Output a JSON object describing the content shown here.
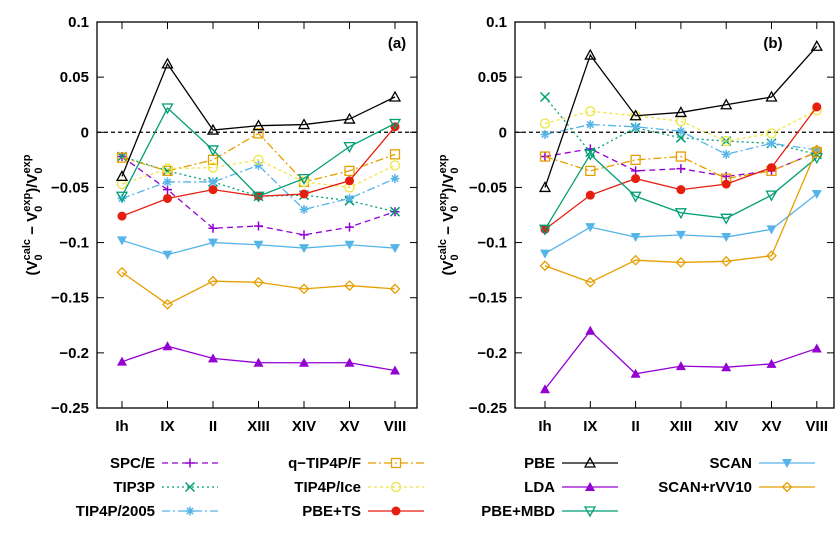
{
  "chart_data": [
    {
      "type": "line",
      "panel_label": "(a)",
      "categories": [
        "Ih",
        "IX",
        "II",
        "XIII",
        "XIV",
        "XV",
        "VIII"
      ],
      "ylim": [
        -0.25,
        0.1
      ],
      "yticks": [
        "0.1",
        "0.05",
        "0",
        "−0.05",
        "−0.1",
        "−0.15",
        "−0.2",
        "−0.25"
      ],
      "ylabel_parts": [
        "(V",
        "0",
        "calc",
        " − V",
        "0",
        "exp",
        ")/V",
        "0",
        "exp"
      ],
      "series": [
        {
          "name": "SPC/E",
          "color": "#9400d3",
          "dash": "6,4",
          "marker": "plus",
          "values": [
            -0.022,
            -0.052,
            -0.087,
            -0.085,
            -0.093,
            -0.086,
            -0.072
          ]
        },
        {
          "name": "TIP3P",
          "color": "#009e73",
          "dash": "2,3",
          "marker": "cross",
          "values": [
            -0.022,
            -0.035,
            -0.045,
            -0.058,
            -0.057,
            -0.062,
            -0.072
          ]
        },
        {
          "name": "TIP4P/2005",
          "color": "#56b4e9",
          "dash": "8,3,2,3",
          "marker": "star",
          "values": [
            -0.06,
            -0.045,
            -0.045,
            -0.03,
            -0.07,
            -0.06,
            -0.042
          ]
        },
        {
          "name": "q−TIP4P/F",
          "color": "#e69f00",
          "dash": "8,3,2,3",
          "marker": "square",
          "values": [
            -0.023,
            -0.035,
            -0.025,
            -0.001,
            -0.045,
            -0.035,
            -0.02
          ]
        },
        {
          "name": "TIP4P/Ice",
          "color": "#f0e442",
          "dash": "3,3",
          "marker": "circle",
          "values": [
            -0.047,
            -0.033,
            -0.032,
            -0.025,
            -0.045,
            -0.05,
            -0.03
          ]
        },
        {
          "name": "PBE+TS",
          "color": "#e51e10",
          "dash": "",
          "marker": "filledcircle",
          "values": [
            -0.076,
            -0.06,
            -0.052,
            -0.058,
            -0.056,
            -0.044,
            0.005
          ]
        },
        {
          "name": "PBE",
          "color": "#000000",
          "dash": "",
          "marker": "triangle",
          "values": [
            -0.04,
            0.062,
            0.002,
            0.006,
            0.007,
            0.012,
            0.032
          ]
        },
        {
          "name": "LDA",
          "color": "#9400d3",
          "dash": "",
          "marker": "filledtriangle",
          "values": [
            -0.208,
            -0.194,
            -0.205,
            -0.209,
            -0.209,
            -0.209,
            -0.216
          ]
        },
        {
          "name": "PBE+MBD",
          "color": "#009e73",
          "dash": "",
          "marker": "invtriangle",
          "values": [
            -0.058,
            0.022,
            -0.016,
            -0.058,
            -0.042,
            -0.013,
            0.008
          ]
        },
        {
          "name": "SCAN",
          "color": "#56b4e9",
          "dash": "",
          "marker": "filledinvtriangle",
          "values": [
            -0.098,
            -0.111,
            -0.1,
            -0.102,
            -0.105,
            -0.102,
            -0.105
          ]
        },
        {
          "name": "SCAN+rVV10",
          "color": "#e69f00",
          "dash": "",
          "marker": "diamond",
          "values": [
            -0.127,
            -0.156,
            -0.135,
            -0.136,
            -0.142,
            -0.139,
            -0.142
          ]
        }
      ]
    },
    {
      "type": "line",
      "panel_label": "(b)",
      "categories": [
        "Ih",
        "IX",
        "II",
        "XIII",
        "XIV",
        "XV",
        "VIII"
      ],
      "ylim": [
        -0.25,
        0.1
      ],
      "yticks": [
        "0.1",
        "0.05",
        "0",
        "−0.05",
        "−0.1",
        "−0.15",
        "−0.2",
        "−0.25"
      ],
      "ylabel_parts": [
        "(V",
        "0",
        "calc",
        " − V",
        "0",
        "exp",
        ")/V",
        "0",
        "exp"
      ],
      "series": [
        {
          "name": "SPC/E",
          "color": "#9400d3",
          "dash": "6,4",
          "marker": "plus",
          "values": [
            -0.022,
            -0.015,
            -0.035,
            -0.033,
            -0.04,
            -0.035,
            -0.018
          ]
        },
        {
          "name": "TIP3P",
          "color": "#009e73",
          "dash": "2,3",
          "marker": "cross",
          "values": [
            0.032,
            -0.018,
            0.004,
            -0.005,
            -0.008,
            -0.01,
            -0.02
          ]
        },
        {
          "name": "TIP4P/2005",
          "color": "#56b4e9",
          "dash": "8,3,2,3",
          "marker": "star",
          "values": [
            -0.002,
            0.007,
            0.005,
            0.001,
            -0.02,
            -0.01,
            -0.016
          ]
        },
        {
          "name": "q−TIP4P/F",
          "color": "#e69f00",
          "dash": "8,3,2,3",
          "marker": "square",
          "values": [
            -0.022,
            -0.035,
            -0.025,
            -0.022,
            -0.042,
            -0.035,
            -0.018
          ]
        },
        {
          "name": "TIP4P/Ice",
          "color": "#f0e442",
          "dash": "3,3",
          "marker": "circle",
          "values": [
            0.008,
            0.019,
            0.015,
            0.01,
            -0.008,
            -0.001,
            0.02
          ]
        },
        {
          "name": "PBE+TS",
          "color": "#e51e10",
          "dash": "",
          "marker": "filledcircle",
          "values": [
            -0.088,
            -0.057,
            -0.042,
            -0.052,
            -0.047,
            -0.032,
            0.023
          ]
        },
        {
          "name": "PBE",
          "color": "#000000",
          "dash": "",
          "marker": "triangle",
          "values": [
            -0.05,
            0.07,
            0.015,
            0.018,
            0.025,
            0.032,
            0.078
          ]
        },
        {
          "name": "LDA",
          "color": "#9400d3",
          "dash": "",
          "marker": "filledtriangle",
          "values": [
            -0.233,
            -0.18,
            -0.219,
            -0.212,
            -0.213,
            -0.21,
            -0.196
          ]
        },
        {
          "name": "PBE+MBD",
          "color": "#009e73",
          "dash": "",
          "marker": "invtriangle",
          "values": [
            -0.088,
            -0.02,
            -0.058,
            -0.073,
            -0.078,
            -0.057,
            -0.023
          ]
        },
        {
          "name": "SCAN",
          "color": "#56b4e9",
          "dash": "",
          "marker": "filledinvtriangle",
          "values": [
            -0.11,
            -0.086,
            -0.095,
            -0.093,
            -0.095,
            -0.088,
            -0.056
          ]
        },
        {
          "name": "SCAN+rVV10",
          "color": "#e69f00",
          "dash": "",
          "marker": "diamond",
          "values": [
            -0.121,
            -0.136,
            -0.116,
            -0.118,
            -0.117,
            -0.112,
            -0.016
          ]
        }
      ]
    }
  ]
}
